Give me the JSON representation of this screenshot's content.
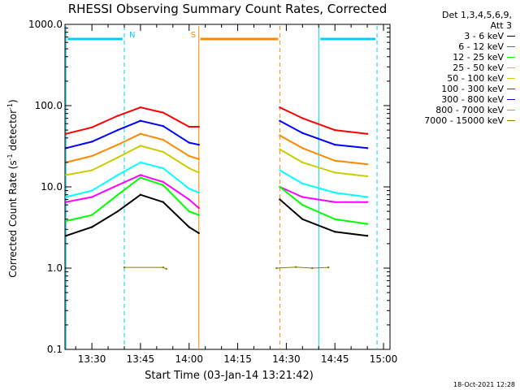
{
  "chart_data": {
    "type": "line",
    "title": "RHESSI Observing Summary Count Rates, Corrected",
    "xlabel": "Start Time (03-Jan-14 13:21:42)",
    "ylabel_prefix": "Corrected Count Rate (s",
    "ylabel_exp1": "-1",
    "ylabel_mid": " detector",
    "ylabel_exp2": "-1",
    "ylabel_suffix": ")",
    "yscale": "log",
    "ylim": [
      0.1,
      1000
    ],
    "xlim": [
      "13:21:42",
      "15:02:00"
    ],
    "x_ticks": [
      "13:30",
      "13:45",
      "14:00",
      "14:15",
      "14:30",
      "14:45",
      "15:00"
    ],
    "y_ticks": [
      "0.1",
      "1.0",
      "10.0",
      "100.0",
      "1000.0"
    ],
    "legend_header": [
      "Det 1,3,4,5,6,9,",
      "Att 3"
    ],
    "series": [
      {
        "name": "3 - 6 keV",
        "color": "#000000",
        "points": [
          [
            "13:22",
            2.5
          ],
          [
            "13:30",
            3.2
          ],
          [
            "13:38",
            5.0
          ],
          [
            "13:45",
            8.0
          ],
          [
            "13:52",
            6.5
          ],
          [
            "14:00",
            3.2
          ],
          [
            "14:03",
            2.7
          ],
          [
            "14:28",
            7.0
          ],
          [
            "14:35",
            4.0
          ],
          [
            "14:45",
            2.8
          ],
          [
            "14:55",
            2.5
          ]
        ]
      },
      {
        "name": "6 - 12 keV",
        "color": "#ff00ff",
        "points": [
          [
            "13:22",
            6.5
          ],
          [
            "13:30",
            7.5
          ],
          [
            "13:38",
            10.5
          ],
          [
            "13:45",
            14.0
          ],
          [
            "13:52",
            11.5
          ],
          [
            "14:00",
            7.0
          ],
          [
            "14:03",
            5.5
          ],
          [
            "14:28",
            10.0
          ],
          [
            "14:35",
            7.5
          ],
          [
            "14:45",
            6.5
          ],
          [
            "14:55",
            6.5
          ]
        ]
      },
      {
        "name": "12 - 25 keV",
        "color": "#00ff00",
        "points": [
          [
            "13:22",
            3.8
          ],
          [
            "13:30",
            4.5
          ],
          [
            "13:38",
            8.0
          ],
          [
            "13:45",
            13.0
          ],
          [
            "13:52",
            10.5
          ],
          [
            "14:00",
            5.0
          ],
          [
            "14:03",
            4.5
          ],
          [
            "14:28",
            10.0
          ],
          [
            "14:35",
            6.0
          ],
          [
            "14:45",
            4.0
          ],
          [
            "14:55",
            3.5
          ]
        ]
      },
      {
        "name": "25 - 50 keV",
        "color": "#00ffff",
        "points": [
          [
            "13:22",
            7.5
          ],
          [
            "13:30",
            9.0
          ],
          [
            "13:38",
            14.0
          ],
          [
            "13:45",
            20.0
          ],
          [
            "13:52",
            17.0
          ],
          [
            "14:00",
            9.5
          ],
          [
            "14:03",
            8.5
          ],
          [
            "14:28",
            16.0
          ],
          [
            "14:35",
            11.0
          ],
          [
            "14:45",
            8.5
          ],
          [
            "14:55",
            7.5
          ]
        ]
      },
      {
        "name": "50 - 100 keV",
        "color": "#cccc00",
        "points": [
          [
            "13:22",
            14.0
          ],
          [
            "13:30",
            16.0
          ],
          [
            "13:38",
            23.0
          ],
          [
            "13:45",
            32.0
          ],
          [
            "13:52",
            27.0
          ],
          [
            "14:00",
            17.0
          ],
          [
            "14:03",
            15.0
          ],
          [
            "14:28",
            29.0
          ],
          [
            "14:35",
            20.0
          ],
          [
            "14:45",
            15.0
          ],
          [
            "14:55",
            13.5
          ]
        ]
      },
      {
        "name": "100 - 300 keV",
        "color": "#ff0000",
        "points": [
          [
            "13:22",
            45.0
          ],
          [
            "13:30",
            54.0
          ],
          [
            "13:38",
            75.0
          ],
          [
            "13:45",
            95.0
          ],
          [
            "13:52",
            82.0
          ],
          [
            "14:00",
            55.0
          ],
          [
            "14:03",
            55.0
          ],
          [
            "14:28",
            95.0
          ],
          [
            "14:35",
            70.0
          ],
          [
            "14:45",
            50.0
          ],
          [
            "14:55",
            45.0
          ]
        ]
      },
      {
        "name": "300 - 800 keV",
        "color": "#0000ff",
        "points": [
          [
            "13:22",
            30.0
          ],
          [
            "13:30",
            36.0
          ],
          [
            "13:38",
            50.0
          ],
          [
            "13:45",
            65.0
          ],
          [
            "13:52",
            56.0
          ],
          [
            "14:00",
            35.0
          ],
          [
            "14:03",
            33.0
          ],
          [
            "14:28",
            65.0
          ],
          [
            "14:35",
            46.0
          ],
          [
            "14:45",
            33.0
          ],
          [
            "14:55",
            30.0
          ]
        ]
      },
      {
        "name": "800 - 7000 keV",
        "color": "#ff8800",
        "points": [
          [
            "13:22",
            20.0
          ],
          [
            "13:30",
            24.0
          ],
          [
            "13:38",
            33.0
          ],
          [
            "13:45",
            45.0
          ],
          [
            "13:52",
            38.0
          ],
          [
            "14:00",
            24.0
          ],
          [
            "14:03",
            22.0
          ],
          [
            "14:28",
            43.0
          ],
          [
            "14:35",
            30.0
          ],
          [
            "14:45",
            21.0
          ],
          [
            "14:55",
            19.0
          ]
        ]
      },
      {
        "name": "7000 - 15000 keV",
        "color": "#808000",
        "points": [
          [
            "13:40",
            1.02
          ],
          [
            "13:52",
            1.02
          ],
          [
            "13:53",
            0.98
          ],
          [
            "14:27",
            1.0
          ],
          [
            "14:33",
            1.03
          ],
          [
            "14:38",
            1.0
          ],
          [
            "14:43",
            1.02
          ]
        ]
      }
    ],
    "markers": [
      {
        "label": "N",
        "color": "#00ccff",
        "type": "night",
        "start": "13:22",
        "end": "13:40"
      },
      {
        "label": "",
        "color": "#00ccff",
        "type": "night",
        "start": "14:40",
        "end": "14:58"
      },
      {
        "label": "S",
        "color": "#ff8800",
        "type": "saa",
        "start": "14:03",
        "end": "14:28"
      }
    ]
  },
  "footer_timestamp": "18-Oct-2021 12:28"
}
